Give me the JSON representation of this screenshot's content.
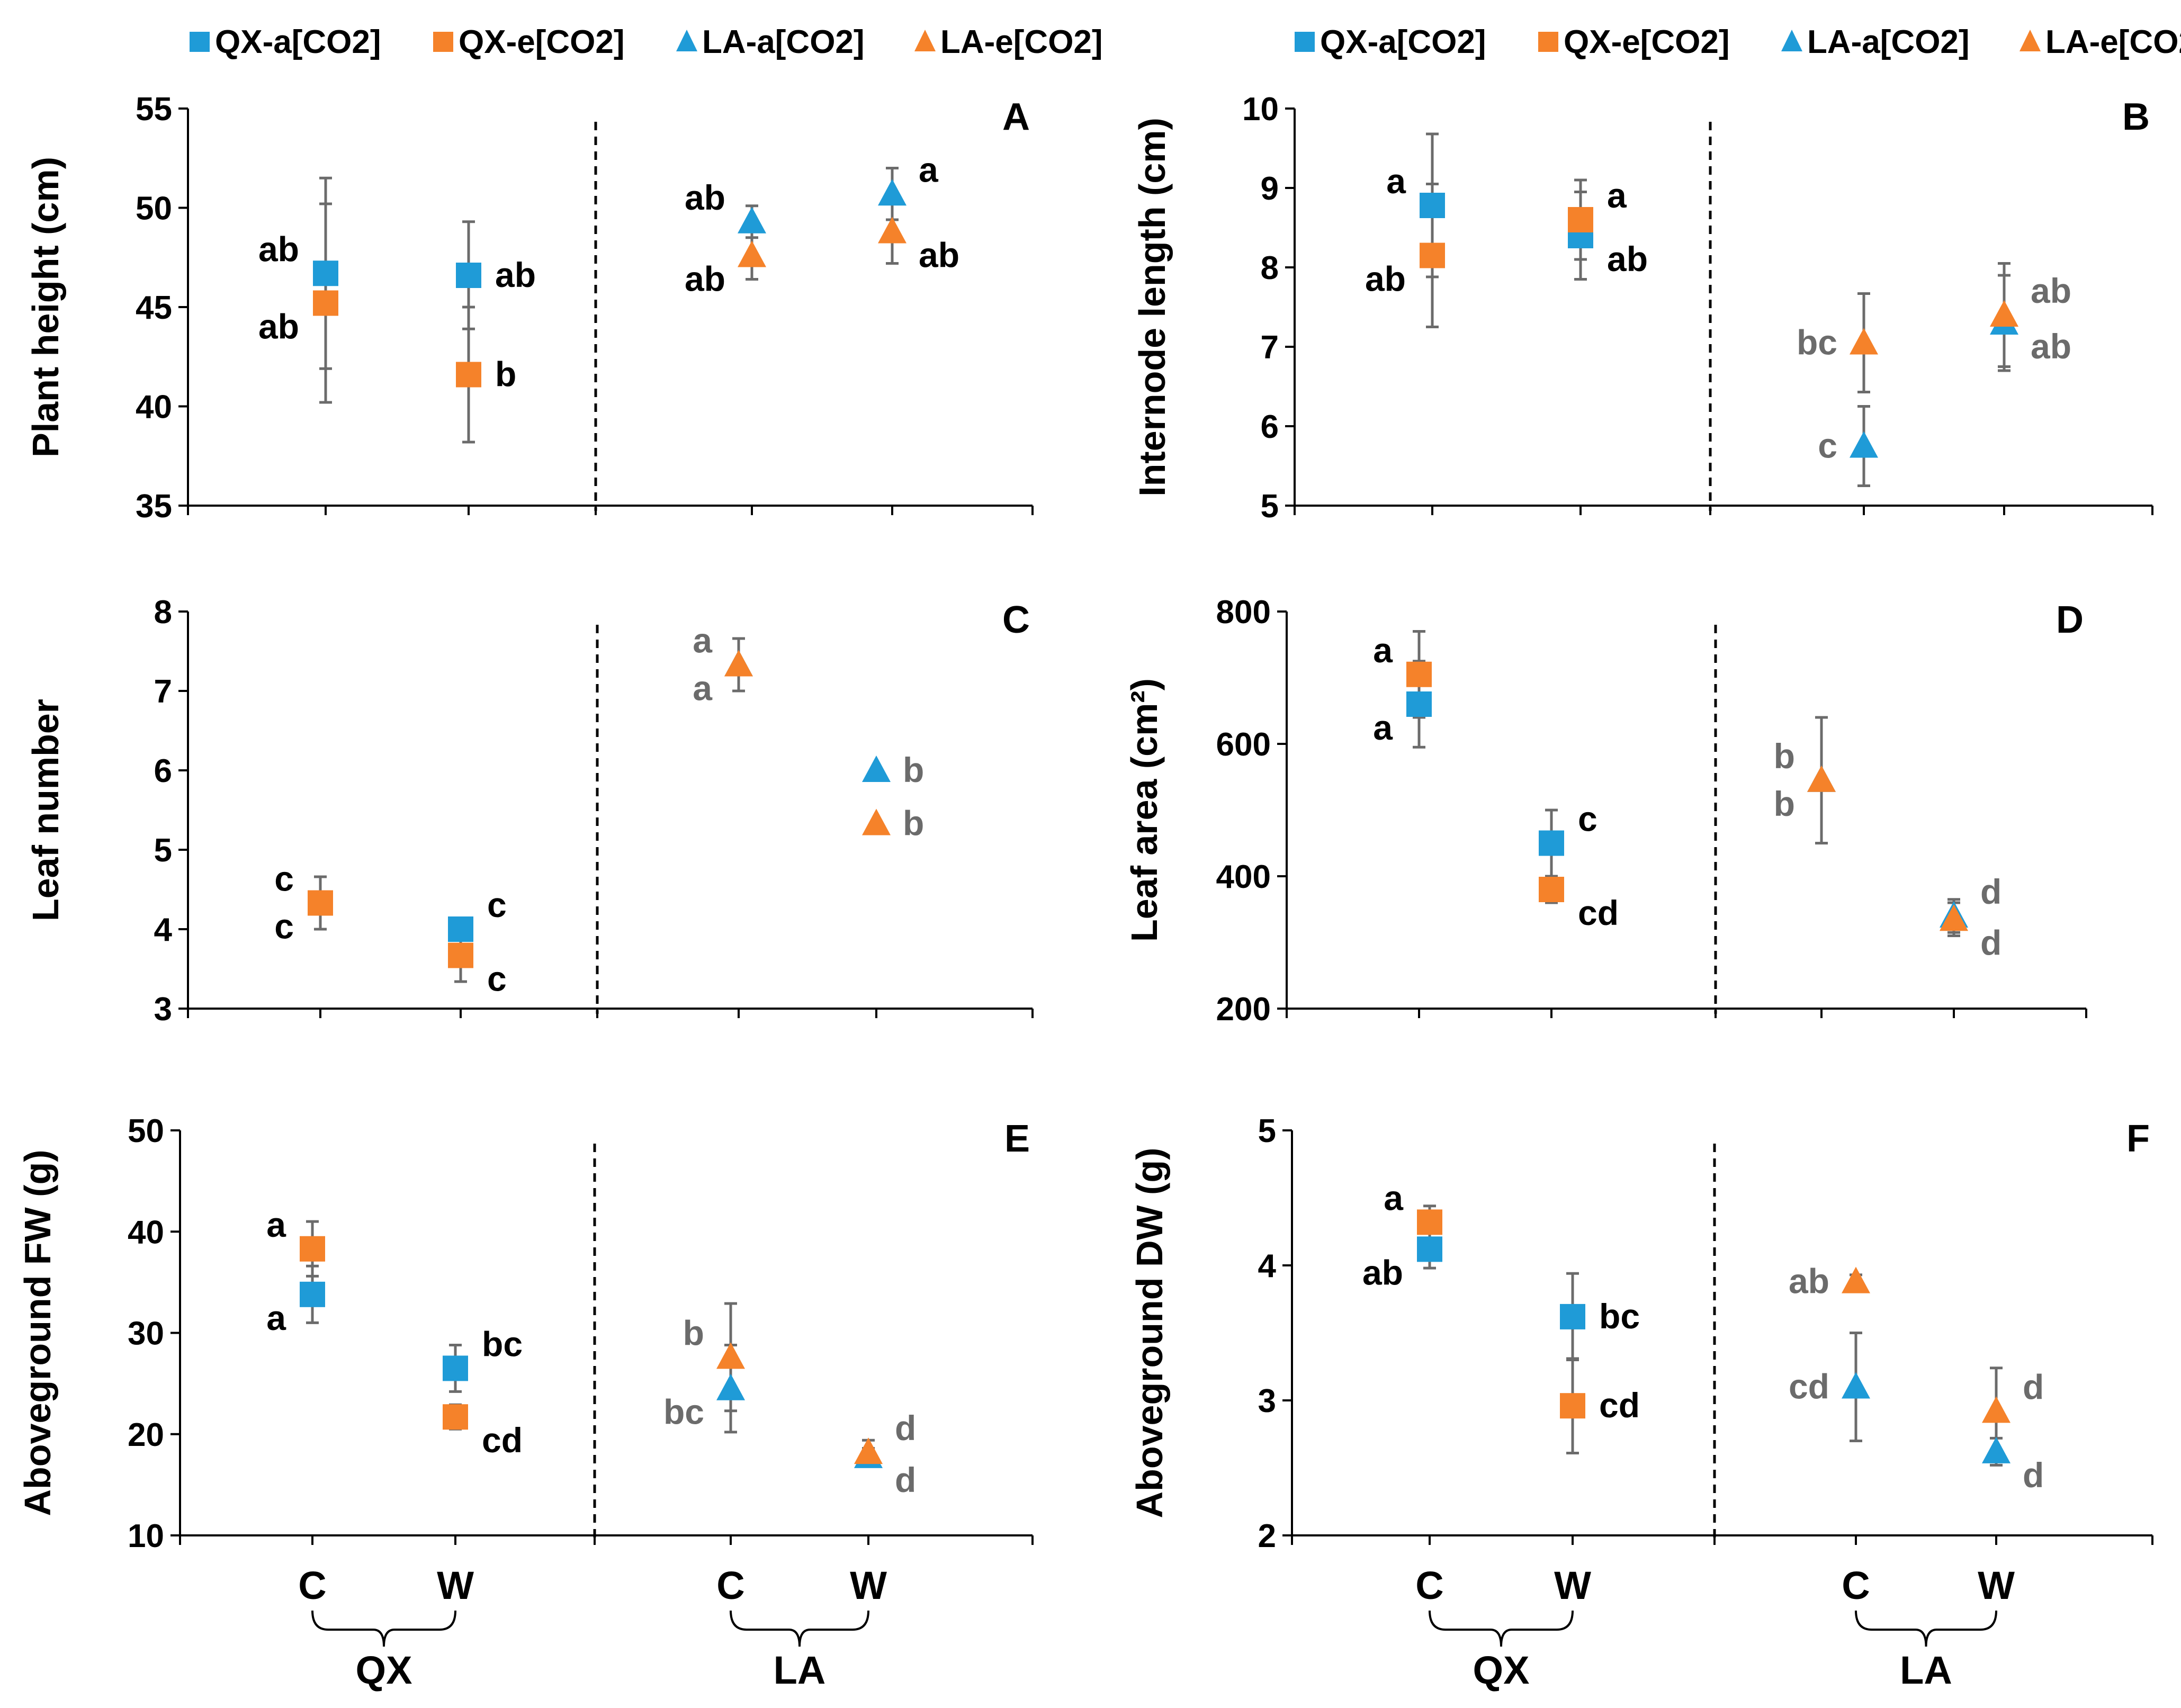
{
  "colors": {
    "a_co2": "#1f9bd7",
    "e_co2": "#f5822a",
    "errorbar": "#6b6b6b",
    "sig_black": "#000000",
    "sig_gray": "#6b6b6b"
  },
  "legend": [
    {
      "label": "QX-a[CO2]",
      "marker": "square",
      "color": "#1f9bd7"
    },
    {
      "label": "QX-e[CO2]",
      "marker": "square",
      "color": "#f5822a"
    },
    {
      "label": "LA-a[CO2]",
      "marker": "triangle",
      "color": "#1f9bd7"
    },
    {
      "label": "LA-e[CO2]",
      "marker": "triangle",
      "color": "#f5822a"
    }
  ],
  "x_categories": [
    "C",
    "W",
    "C",
    "W"
  ],
  "x_groups": [
    "QX",
    "LA"
  ],
  "chart_data": [
    {
      "panel": "A",
      "type": "scatter",
      "ylabel": "Plant height (cm)",
      "ylim": [
        35,
        55
      ],
      "yticks": [
        "35",
        "40",
        "45",
        "50",
        "55"
      ],
      "points": [
        {
          "series": "QX-a[CO2]",
          "x": 0,
          "y": 46.7,
          "err": 4.8,
          "letter": "ab",
          "lpos": "left-up",
          "gray": false
        },
        {
          "series": "QX-e[CO2]",
          "x": 0,
          "y": 45.2,
          "err": 5.0,
          "letter": "ab",
          "lpos": "left-down",
          "gray": false
        },
        {
          "series": "QX-a[CO2]",
          "x": 1,
          "y": 46.6,
          "err": 2.7,
          "letter": "ab",
          "lpos": "right",
          "gray": false
        },
        {
          "series": "QX-e[CO2]",
          "x": 1,
          "y": 41.6,
          "err": 3.4,
          "letter": "b",
          "lpos": "right",
          "gray": false
        },
        {
          "series": "LA-a[CO2]",
          "x": 2,
          "y": 49.3,
          "err": 0.8,
          "letter": "ab",
          "lpos": "left-up",
          "gray": false
        },
        {
          "series": "LA-e[CO2]",
          "x": 2,
          "y": 47.6,
          "err": 1.2,
          "letter": "ab",
          "lpos": "left-down",
          "gray": false
        },
        {
          "series": "LA-a[CO2]",
          "x": 3,
          "y": 50.7,
          "err": 1.3,
          "letter": "a",
          "lpos": "right-up",
          "gray": false
        },
        {
          "series": "LA-e[CO2]",
          "x": 3,
          "y": 48.8,
          "err": 1.6,
          "letter": "ab",
          "lpos": "right-down",
          "gray": false
        }
      ]
    },
    {
      "panel": "B",
      "type": "scatter",
      "ylabel": "Internode length (cm)",
      "ylim": [
        5,
        10
      ],
      "yticks": [
        "5",
        "6",
        "7",
        "8",
        "9",
        "10"
      ],
      "points": [
        {
          "series": "QX-a[CO2]",
          "x": 0,
          "y": 8.78,
          "err": 0.9,
          "letter": "a",
          "lpos": "left-up",
          "gray": false
        },
        {
          "series": "QX-e[CO2]",
          "x": 0,
          "y": 8.15,
          "err": 0.9,
          "letter": "ab",
          "lpos": "left-down",
          "gray": false
        },
        {
          "series": "QX-a[CO2]",
          "x": 1,
          "y": 8.4,
          "err": 0.55,
          "letter": "ab",
          "lpos": "right-down",
          "gray": false
        },
        {
          "series": "QX-e[CO2]",
          "x": 1,
          "y": 8.6,
          "err": 0.5,
          "letter": "a",
          "lpos": "right-up",
          "gray": false
        },
        {
          "series": "LA-a[CO2]",
          "x": 2,
          "y": 5.75,
          "err": 0.5,
          "letter": "c",
          "lpos": "left",
          "gray": true
        },
        {
          "series": "LA-e[CO2]",
          "x": 2,
          "y": 7.05,
          "err": 0.62,
          "letter": "bc",
          "lpos": "left",
          "gray": true
        },
        {
          "series": "LA-a[CO2]",
          "x": 3,
          "y": 7.3,
          "err": 0.6,
          "letter": "ab",
          "lpos": "right-down",
          "gray": true
        },
        {
          "series": "LA-e[CO2]",
          "x": 3,
          "y": 7.4,
          "err": 0.65,
          "letter": "ab",
          "lpos": "right-up",
          "gray": true
        }
      ]
    },
    {
      "panel": "C",
      "type": "scatter",
      "ylabel": "Leaf number",
      "ylim": [
        3,
        8
      ],
      "yticks": [
        "3",
        "4",
        "5",
        "6",
        "7",
        "8"
      ],
      "points": [
        {
          "series": "QX-a[CO2]",
          "x": 0,
          "y": 4.33,
          "err": 0.33,
          "letter": "c",
          "lpos": "left-down",
          "gray": false
        },
        {
          "series": "QX-e[CO2]",
          "x": 0,
          "y": 4.33,
          "err": 0.33,
          "letter": "c",
          "lpos": "left-up",
          "gray": false
        },
        {
          "series": "QX-a[CO2]",
          "x": 1,
          "y": 4.0,
          "err": 0.0,
          "letter": "c",
          "lpos": "right-up",
          "gray": false
        },
        {
          "series": "QX-e[CO2]",
          "x": 1,
          "y": 3.67,
          "err": 0.33,
          "letter": "c",
          "lpos": "right-down",
          "gray": false
        },
        {
          "series": "LA-a[CO2]",
          "x": 2,
          "y": 7.33,
          "err": 0.33,
          "letter": "a",
          "lpos": "left-down",
          "gray": true
        },
        {
          "series": "LA-e[CO2]",
          "x": 2,
          "y": 7.33,
          "err": 0.33,
          "letter": "a",
          "lpos": "left-up",
          "gray": true
        },
        {
          "series": "LA-a[CO2]",
          "x": 3,
          "y": 6.0,
          "err": 0.0,
          "letter": "b",
          "lpos": "right",
          "gray": true
        },
        {
          "series": "LA-e[CO2]",
          "x": 3,
          "y": 5.33,
          "err": 0.0,
          "letter": "b",
          "lpos": "right",
          "gray": true
        }
      ]
    },
    {
      "panel": "D",
      "type": "scatter",
      "ylabel": "Leaf area (cm²)",
      "ylim": [
        200,
        800
      ],
      "yticks": [
        "200",
        "400",
        "600",
        "800"
      ],
      "points": [
        {
          "series": "QX-a[CO2]",
          "x": 0,
          "y": 660,
          "err": 65,
          "letter": "a",
          "lpos": "left-down",
          "gray": false
        },
        {
          "series": "QX-e[CO2]",
          "x": 0,
          "y": 705,
          "err": 65,
          "letter": "a",
          "lpos": "left-up",
          "gray": false
        },
        {
          "series": "QX-a[CO2]",
          "x": 1,
          "y": 450,
          "err": 50,
          "letter": "c",
          "lpos": "right-up",
          "gray": false
        },
        {
          "series": "QX-e[CO2]",
          "x": 1,
          "y": 380,
          "err": 20,
          "letter": "cd",
          "lpos": "right-down",
          "gray": false
        },
        {
          "series": "LA-a[CO2]",
          "x": 2,
          "y": 545,
          "err": 95,
          "letter": "b",
          "lpos": "left-up",
          "gray": true
        },
        {
          "series": "LA-e[CO2]",
          "x": 2,
          "y": 545,
          "err": 95,
          "letter": "b",
          "lpos": "left-down",
          "gray": true
        },
        {
          "series": "LA-a[CO2]",
          "x": 3,
          "y": 340,
          "err": 25,
          "letter": "d",
          "lpos": "right-up",
          "gray": true
        },
        {
          "series": "LA-e[CO2]",
          "x": 3,
          "y": 335,
          "err": 25,
          "letter": "d",
          "lpos": "right-down",
          "gray": true
        }
      ]
    },
    {
      "panel": "E",
      "type": "scatter",
      "ylabel": "Aboveground FW (g)",
      "ylim": [
        10,
        50
      ],
      "yticks": [
        "10",
        "20",
        "30",
        "40",
        "50"
      ],
      "points": [
        {
          "series": "QX-a[CO2]",
          "x": 0,
          "y": 33.8,
          "err": 2.8,
          "letter": "a",
          "lpos": "left-down",
          "gray": false
        },
        {
          "series": "QX-e[CO2]",
          "x": 0,
          "y": 38.3,
          "err": 2.7,
          "letter": "a",
          "lpos": "left-up",
          "gray": false
        },
        {
          "series": "QX-a[CO2]",
          "x": 1,
          "y": 26.5,
          "err": 2.3,
          "letter": "bc",
          "lpos": "right-up",
          "gray": false
        },
        {
          "series": "QX-e[CO2]",
          "x": 1,
          "y": 21.7,
          "err": 1.2,
          "letter": "cd",
          "lpos": "right-down",
          "gray": false
        },
        {
          "series": "LA-a[CO2]",
          "x": 2,
          "y": 24.5,
          "err": 4.3,
          "letter": "bc",
          "lpos": "left-down",
          "gray": true
        },
        {
          "series": "LA-e[CO2]",
          "x": 2,
          "y": 27.6,
          "err": 5.3,
          "letter": "b",
          "lpos": "left-up",
          "gray": true
        },
        {
          "series": "LA-a[CO2]",
          "x": 3,
          "y": 17.8,
          "err": 0.8,
          "letter": "d",
          "lpos": "right-down",
          "gray": true
        },
        {
          "series": "LA-e[CO2]",
          "x": 3,
          "y": 18.2,
          "err": 1.2,
          "letter": "d",
          "lpos": "right-up",
          "gray": true
        }
      ]
    },
    {
      "panel": "F",
      "type": "scatter",
      "ylabel": "Aboveground DW (g)",
      "ylim": [
        2,
        5
      ],
      "yticks": [
        "2",
        "3",
        "4",
        "5"
      ],
      "points": [
        {
          "series": "QX-a[CO2]",
          "x": 0,
          "y": 4.12,
          "err": 0.14,
          "letter": "ab",
          "lpos": "left-down",
          "gray": false
        },
        {
          "series": "QX-e[CO2]",
          "x": 0,
          "y": 4.32,
          "err": 0.12,
          "letter": "a",
          "lpos": "left-up",
          "gray": false
        },
        {
          "series": "QX-a[CO2]",
          "x": 1,
          "y": 3.62,
          "err": 0.32,
          "letter": "bc",
          "lpos": "right",
          "gray": false
        },
        {
          "series": "QX-e[CO2]",
          "x": 1,
          "y": 2.96,
          "err": 0.35,
          "letter": "cd",
          "lpos": "right",
          "gray": false
        },
        {
          "series": "LA-a[CO2]",
          "x": 2,
          "y": 3.1,
          "err": 0.4,
          "letter": "cd",
          "lpos": "left",
          "gray": true
        },
        {
          "series": "LA-e[CO2]",
          "x": 2,
          "y": 3.88,
          "err": 0.05,
          "letter": "ab",
          "lpos": "left",
          "gray": true
        },
        {
          "series": "LA-a[CO2]",
          "x": 3,
          "y": 2.62,
          "err": 0.1,
          "letter": "d",
          "lpos": "right-down",
          "gray": true
        },
        {
          "series": "LA-e[CO2]",
          "x": 3,
          "y": 2.92,
          "err": 0.32,
          "letter": "d",
          "lpos": "right-up",
          "gray": true
        }
      ]
    }
  ]
}
